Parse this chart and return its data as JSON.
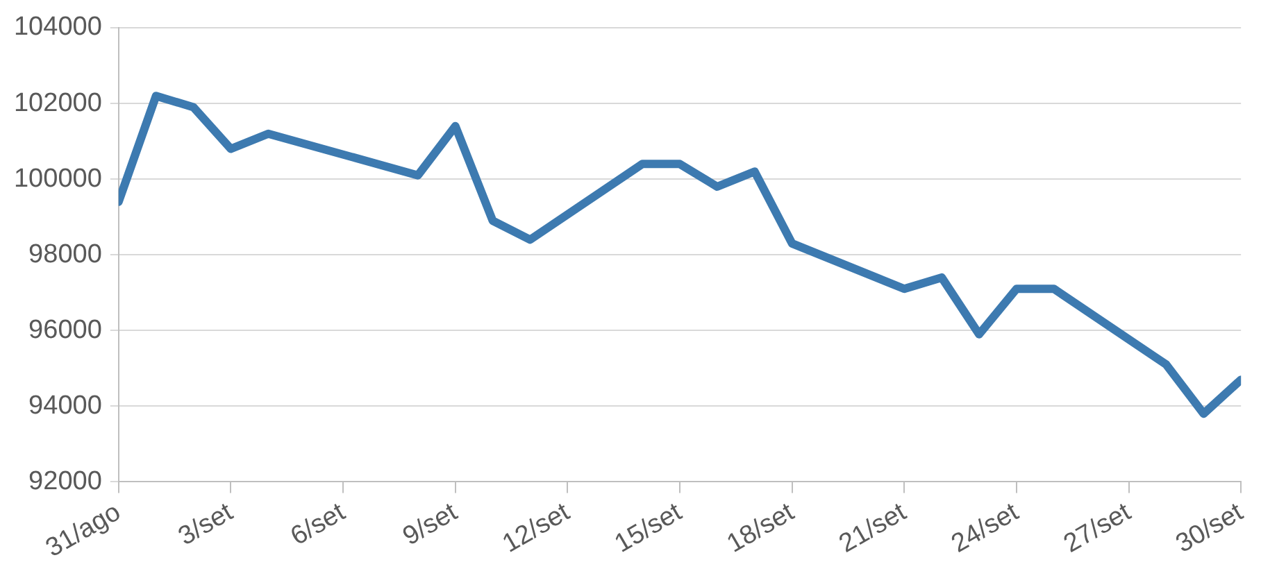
{
  "chart_data": {
    "type": "line",
    "x": [
      "--08-31",
      "--09-01",
      "--09-02",
      "--09-03",
      "--09-04",
      "--09-08",
      "--09-09",
      "--09-10",
      "--09-11",
      "--09-14",
      "--09-15",
      "--09-16",
      "--09-17",
      "--09-18",
      "--09-21",
      "--09-22",
      "--09-23",
      "--09-24",
      "--09-25",
      "--09-28",
      "--09-29",
      "--09-30"
    ],
    "series": [
      {
        "color": "#3d7ab0",
        "values": [
          99400,
          102200,
          101900,
          100800,
          101200,
          100100,
          101400,
          98900,
          98400,
          100400,
          100400,
          99800,
          100200,
          98300,
          97100,
          97400,
          95900,
          97100,
          97100,
          95100,
          93800,
          94700
        ]
      }
    ],
    "xlim": [
      "--08-31",
      "--09-30"
    ],
    "xticks": [
      {
        "value": "--08-31",
        "label": "31/ago"
      },
      {
        "value": "--09-03",
        "label": "3/set"
      },
      {
        "value": "--09-06",
        "label": "6/set"
      },
      {
        "value": "--09-09",
        "label": "9/set"
      },
      {
        "value": "--09-12",
        "label": "12/set"
      },
      {
        "value": "--09-15",
        "label": "15/set"
      },
      {
        "value": "--09-18",
        "label": "18/set"
      },
      {
        "value": "--09-21",
        "label": "21/set"
      },
      {
        "value": "--09-24",
        "label": "24/set"
      },
      {
        "value": "--09-27",
        "label": "27/set"
      },
      {
        "value": "--09-30",
        "label": "30/set"
      }
    ],
    "ylim": [
      92000,
      104000
    ],
    "yticks": [
      92000,
      94000,
      96000,
      98000,
      100000,
      102000,
      104000
    ],
    "grid": "y",
    "legend": false,
    "marker": "none",
    "line_style": "solid"
  }
}
